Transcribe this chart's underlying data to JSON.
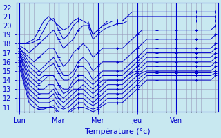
{
  "xlabel": "Température (°c)",
  "days": [
    "Lun",
    "Mar",
    "Mer",
    "Jeu",
    "Ven"
  ],
  "day_tick_positions": [
    0,
    8,
    16,
    24,
    32
  ],
  "n_steps": 41,
  "ylim": [
    10.5,
    22.5
  ],
  "xlim": [
    -0.5,
    40.5
  ],
  "yticks": [
    11,
    12,
    13,
    14,
    15,
    16,
    17,
    18,
    19,
    20,
    21,
    22
  ],
  "line_color": "#0000CC",
  "bg_color": "#C8E8F0",
  "grid_color": "#9999BB",
  "series": [
    [
      18.0,
      18.0,
      18.2,
      18.5,
      19.5,
      20.5,
      21.0,
      20.5,
      20.0,
      19.5,
      19.8,
      20.5,
      20.8,
      20.5,
      20.5,
      19.0,
      19.5,
      20.0,
      20.5,
      20.5,
      20.5,
      20.5,
      21.0,
      21.5,
      21.5,
      21.5,
      21.5,
      21.5,
      21.5,
      21.5,
      21.5,
      21.5,
      21.5,
      21.5,
      21.5,
      21.5,
      21.5,
      21.5,
      21.5,
      21.5,
      21.5
    ],
    [
      18.0,
      18.0,
      18.0,
      18.2,
      18.5,
      19.5,
      20.5,
      20.8,
      19.5,
      18.5,
      19.0,
      20.0,
      20.5,
      20.5,
      20.2,
      19.0,
      19.5,
      20.0,
      20.2,
      20.5,
      20.5,
      20.5,
      21.0,
      21.0,
      21.0,
      21.0,
      21.0,
      21.0,
      21.0,
      21.0,
      21.0,
      21.0,
      21.0,
      21.0,
      21.0,
      21.0,
      21.0,
      21.0,
      21.0,
      21.0,
      21.0
    ],
    [
      17.8,
      17.5,
      17.0,
      17.5,
      18.0,
      18.5,
      19.0,
      19.5,
      18.5,
      17.5,
      18.0,
      18.5,
      19.5,
      20.0,
      20.0,
      18.5,
      19.0,
      19.5,
      19.8,
      20.0,
      20.2,
      20.2,
      20.5,
      20.5,
      20.5,
      20.5,
      20.5,
      20.5,
      20.5,
      20.5,
      20.5,
      20.5,
      20.5,
      20.5,
      20.5,
      20.5,
      20.5,
      20.5,
      20.5,
      20.5,
      20.5
    ],
    [
      17.5,
      17.0,
      16.5,
      16.0,
      16.5,
      17.0,
      17.5,
      17.5,
      16.5,
      15.5,
      16.0,
      17.0,
      17.5,
      18.0,
      17.5,
      16.5,
      17.0,
      17.5,
      17.5,
      17.5,
      17.5,
      17.5,
      18.0,
      18.5,
      19.0,
      19.5,
      19.5,
      19.5,
      19.5,
      19.5,
      19.5,
      19.5,
      19.5,
      19.5,
      19.5,
      19.5,
      19.5,
      19.5,
      19.5,
      19.5,
      20.0
    ],
    [
      17.5,
      16.8,
      16.0,
      15.5,
      15.0,
      15.5,
      16.0,
      16.5,
      15.5,
      14.5,
      14.5,
      15.0,
      16.0,
      16.5,
      16.0,
      15.0,
      15.5,
      16.0,
      16.0,
      16.0,
      16.0,
      16.0,
      16.5,
      17.0,
      17.5,
      18.0,
      18.5,
      18.5,
      18.5,
      18.5,
      18.5,
      18.5,
      18.5,
      18.5,
      18.5,
      18.5,
      18.5,
      18.5,
      18.5,
      18.5,
      19.0
    ],
    [
      17.2,
      16.5,
      15.5,
      15.0,
      14.5,
      15.0,
      15.5,
      15.8,
      14.8,
      14.0,
      14.0,
      14.5,
      15.5,
      15.5,
      15.0,
      14.0,
      14.5,
      15.0,
      15.0,
      15.0,
      15.0,
      15.0,
      15.5,
      16.0,
      16.5,
      17.0,
      17.5,
      17.5,
      17.5,
      17.5,
      17.5,
      17.5,
      17.5,
      17.5,
      17.5,
      17.5,
      17.5,
      17.5,
      17.5,
      17.5,
      18.0
    ],
    [
      17.0,
      16.2,
      15.0,
      14.5,
      14.0,
      14.5,
      14.5,
      14.5,
      13.5,
      13.0,
      13.0,
      14.0,
      14.5,
      14.5,
      14.0,
      13.5,
      14.0,
      14.5,
      14.5,
      14.5,
      14.5,
      14.5,
      15.0,
      15.5,
      16.0,
      16.5,
      17.0,
      17.0,
      17.0,
      17.0,
      17.0,
      17.0,
      17.0,
      17.0,
      17.0,
      17.0,
      17.0,
      17.0,
      17.0,
      17.0,
      17.5
    ],
    [
      17.0,
      15.8,
      14.5,
      14.0,
      13.5,
      14.0,
      14.5,
      14.5,
      13.5,
      12.5,
      12.8,
      13.5,
      14.0,
      14.0,
      13.5,
      13.0,
      13.5,
      14.0,
      14.0,
      14.0,
      14.0,
      14.0,
      14.5,
      15.0,
      15.5,
      16.0,
      16.5,
      16.5,
      16.5,
      16.5,
      16.5,
      16.5,
      16.5,
      16.5,
      16.5,
      16.5,
      16.5,
      16.5,
      16.5,
      16.5,
      17.0
    ],
    [
      17.0,
      15.5,
      14.0,
      13.5,
      13.0,
      13.0,
      13.5,
      13.5,
      12.5,
      12.0,
      12.5,
      13.0,
      13.0,
      13.5,
      13.0,
      12.5,
      13.0,
      13.5,
      14.0,
      14.0,
      14.0,
      14.0,
      14.5,
      14.8,
      15.0,
      15.5,
      16.0,
      16.0,
      16.0,
      16.0,
      16.0,
      16.0,
      16.0,
      16.0,
      16.0,
      16.0,
      16.0,
      16.0,
      16.0,
      16.0,
      16.5
    ],
    [
      17.0,
      15.0,
      13.5,
      13.0,
      12.5,
      12.5,
      12.5,
      13.0,
      12.0,
      11.5,
      12.0,
      12.5,
      13.0,
      13.0,
      12.5,
      12.0,
      12.5,
      13.0,
      13.5,
      13.5,
      13.5,
      13.5,
      14.0,
      14.5,
      14.8,
      15.0,
      15.5,
      15.5,
      15.5,
      15.5,
      15.5,
      15.5,
      15.5,
      15.5,
      15.5,
      15.5,
      15.5,
      15.5,
      15.5,
      15.5,
      16.0
    ],
    [
      16.5,
      14.5,
      13.0,
      12.5,
      12.0,
      12.0,
      12.0,
      12.5,
      11.5,
      11.0,
      11.5,
      12.0,
      12.5,
      12.5,
      12.0,
      11.5,
      12.0,
      12.5,
      13.0,
      13.0,
      13.0,
      13.0,
      13.5,
      14.0,
      14.5,
      14.8,
      15.0,
      15.0,
      15.0,
      15.0,
      15.0,
      15.0,
      15.0,
      15.0,
      15.0,
      15.0,
      15.0,
      15.0,
      15.0,
      15.0,
      15.5
    ],
    [
      16.2,
      14.2,
      12.5,
      12.0,
      11.5,
      11.5,
      11.5,
      11.8,
      11.0,
      10.8,
      11.0,
      11.5,
      12.0,
      12.0,
      11.5,
      11.2,
      11.5,
      12.0,
      12.5,
      12.5,
      12.5,
      12.5,
      13.0,
      13.5,
      14.0,
      14.5,
      14.8,
      14.8,
      14.8,
      14.8,
      14.8,
      14.8,
      14.8,
      14.8,
      14.8,
      14.8,
      14.8,
      14.8,
      14.8,
      14.8,
      15.0
    ],
    [
      16.0,
      13.8,
      12.0,
      11.5,
      11.0,
      11.0,
      11.0,
      11.2,
      10.5,
      10.2,
      10.5,
      11.0,
      11.5,
      11.5,
      11.0,
      10.8,
      11.0,
      11.5,
      12.0,
      12.0,
      12.0,
      12.0,
      12.5,
      13.0,
      13.5,
      14.0,
      14.5,
      14.5,
      14.5,
      14.5,
      14.5,
      14.5,
      14.5,
      14.5,
      14.5,
      14.5,
      14.5,
      14.5,
      14.5,
      14.5,
      14.8
    ],
    [
      15.5,
      13.5,
      11.5,
      11.0,
      10.8,
      10.8,
      11.0,
      11.0,
      10.2,
      10.0,
      10.2,
      10.8,
      11.0,
      11.0,
      10.8,
      10.5,
      10.8,
      11.2,
      11.5,
      11.5,
      11.5,
      11.5,
      12.0,
      12.5,
      13.0,
      13.5,
      14.0,
      14.0,
      14.0,
      14.0,
      14.0,
      14.0,
      14.0,
      14.0,
      14.0,
      14.0,
      14.0,
      14.0,
      14.0,
      14.0,
      14.5
    ]
  ]
}
